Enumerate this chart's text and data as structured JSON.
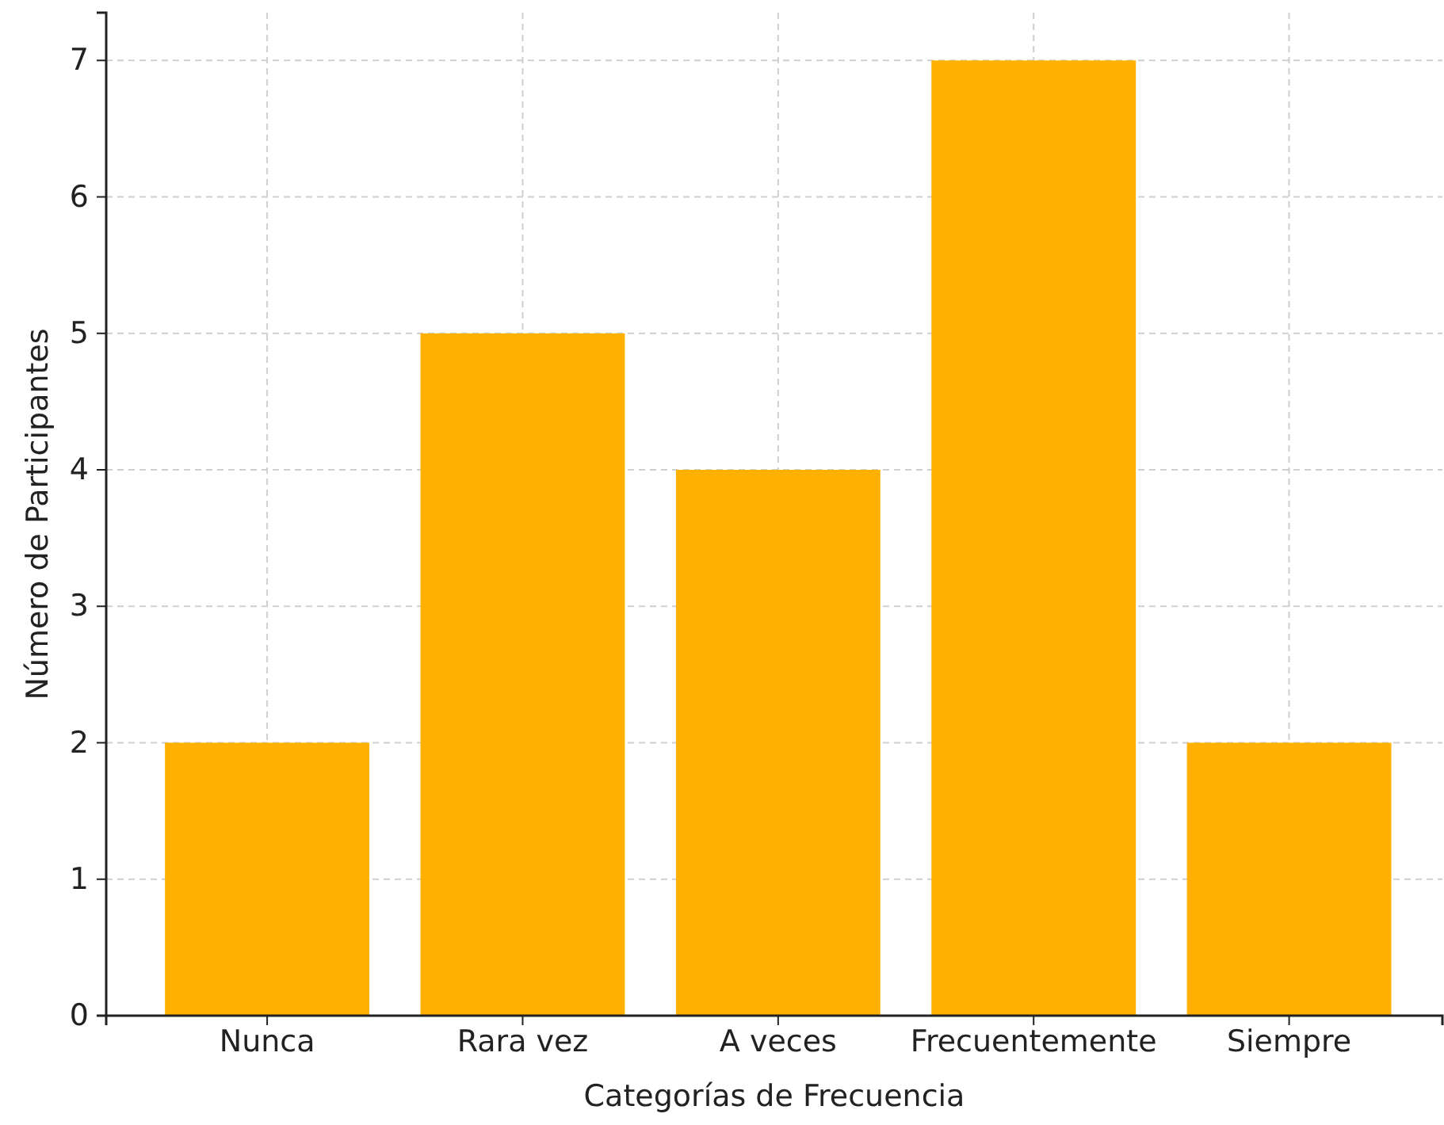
{
  "chart_data": {
    "type": "bar",
    "xlabel": "Categorías de Frecuencia",
    "ylabel": "Número de Participantes",
    "categories": [
      "Nunca",
      "Rara vez",
      "A veces",
      "Frecuentemente",
      "Siempre"
    ],
    "values": [
      2,
      5,
      4,
      7,
      2
    ],
    "color": "#ffb000",
    "ylim": [
      0,
      7.35
    ],
    "yticks": [
      0,
      1,
      2,
      3,
      4,
      5,
      6,
      7
    ],
    "grid": true
  }
}
